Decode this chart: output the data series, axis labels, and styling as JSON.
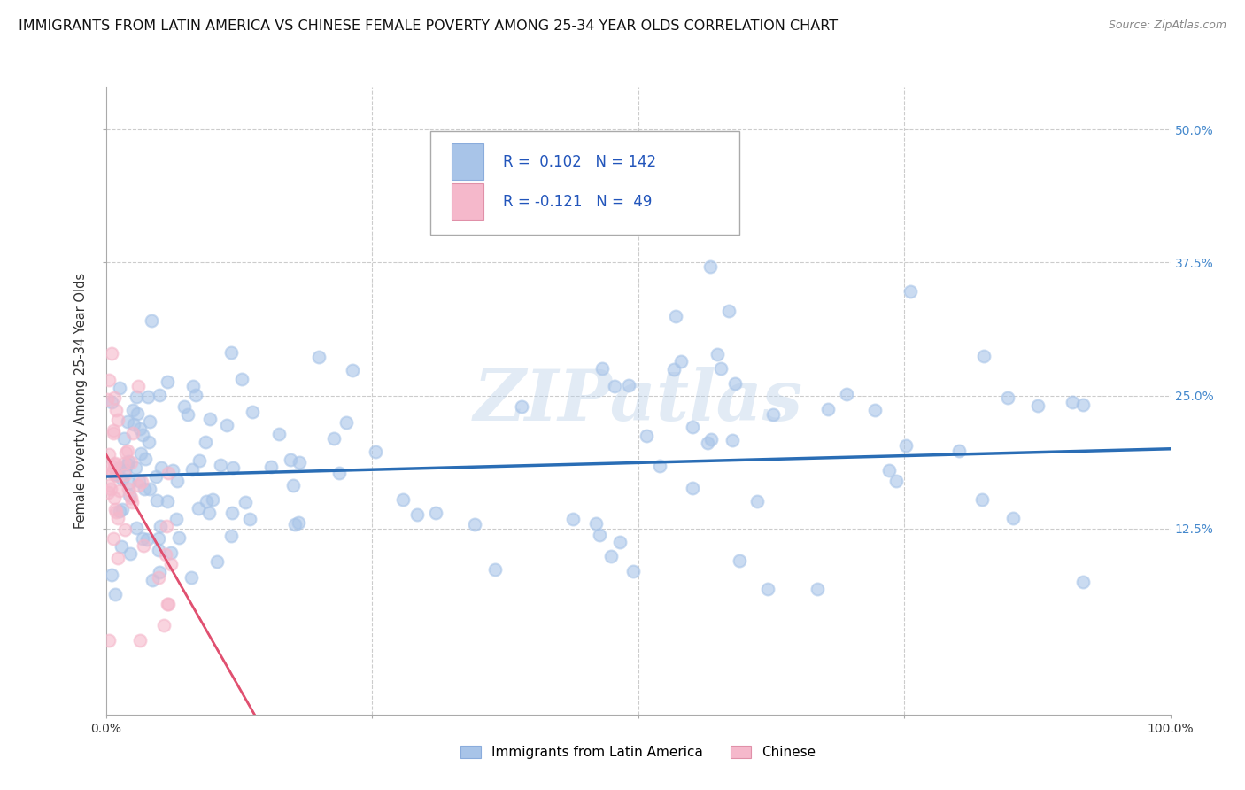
{
  "title": "IMMIGRANTS FROM LATIN AMERICA VS CHINESE FEMALE POVERTY AMONG 25-34 YEAR OLDS CORRELATION CHART",
  "source": "Source: ZipAtlas.com",
  "ylabel": "Female Poverty Among 25-34 Year Olds",
  "xlim": [
    0.0,
    1.0
  ],
  "ylim": [
    -0.05,
    0.54
  ],
  "latin_color": "#a8c4e8",
  "latin_line_color": "#2a6db5",
  "chinese_color": "#f5b8cb",
  "chinese_line_color": "#e05070",
  "latin_R": 0.102,
  "latin_N": 142,
  "chinese_R": -0.121,
  "chinese_N": 49,
  "legend_label_latin": "Immigrants from Latin America",
  "legend_label_chinese": "Chinese",
  "watermark": "ZIPatlas",
  "background_color": "#ffffff",
  "grid_color": "#cccccc",
  "title_fontsize": 11.5,
  "axis_fontsize": 10.5,
  "ytick_vals": [
    0.125,
    0.25,
    0.375,
    0.5
  ],
  "ytick_labels": [
    "12.5%",
    "25.0%",
    "37.5%",
    "50.0%"
  ],
  "xtick_vals": [
    0.0,
    0.25,
    0.5,
    0.75,
    1.0
  ],
  "xtick_labels": [
    "0.0%",
    "",
    "",
    "",
    "100.0%"
  ],
  "seed": 12345
}
